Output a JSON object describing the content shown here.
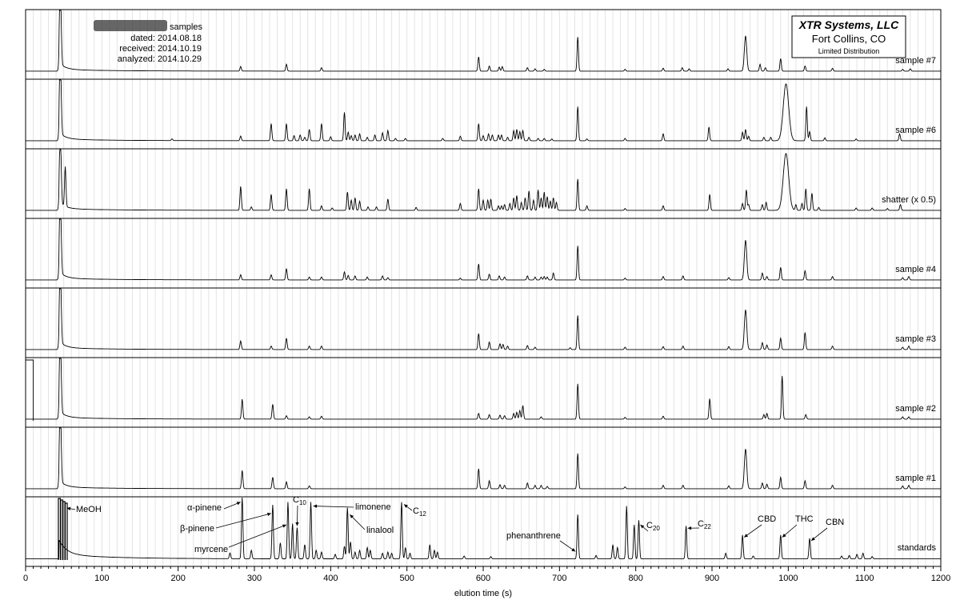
{
  "chart_data": {
    "type": "line",
    "title": "",
    "xlabel": "elution time (s)",
    "ylabel": "",
    "xlim": [
      0,
      1200
    ],
    "x_ticks": [
      0,
      100,
      200,
      300,
      400,
      500,
      600,
      700,
      800,
      900,
      1000,
      1100,
      1200
    ],
    "minor_tick_step": 10,
    "grid": "vertical lines every 10 s",
    "header": {
      "samples_word": "samples",
      "dated": "dated: 2014.08.18",
      "received": "received: 2014.10.19",
      "analyzed": "analyzed: 2014.10.29"
    },
    "company": {
      "name": "XTR Systems, LLC",
      "location": "Fort Collins, CO",
      "note": "Limited Distribution"
    },
    "series": [
      {
        "name": "sample #7",
        "baseline": 0.03,
        "solvent_height": 1.4,
        "peaks": [
          [
            282,
            0.08
          ],
          [
            342,
            0.12
          ],
          [
            388,
            0.06
          ],
          [
            594,
            0.25
          ],
          [
            608,
            0.09
          ],
          [
            621,
            0.07
          ],
          [
            625,
            0.08
          ],
          [
            658,
            0.06
          ],
          [
            668,
            0.04
          ],
          [
            680,
            0.03
          ],
          [
            724,
            0.6
          ],
          [
            786,
            0.03
          ],
          [
            836,
            0.05
          ],
          [
            861,
            0.06
          ],
          [
            870,
            0.04
          ],
          [
            921,
            0.04
          ],
          [
            944,
            0.62
          ],
          [
            963,
            0.12
          ],
          [
            970,
            0.06
          ],
          [
            990,
            0.22
          ],
          [
            1022,
            0.09
          ],
          [
            1058,
            0.05
          ],
          [
            1150,
            0.03
          ],
          [
            1160,
            0.04
          ]
        ]
      },
      {
        "name": "sample #6",
        "baseline": 0.03,
        "solvent_height": 1.4,
        "peaks": [
          [
            192,
            0.03
          ],
          [
            282,
            0.08
          ],
          [
            322,
            0.3
          ],
          [
            342,
            0.3
          ],
          [
            352,
            0.09
          ],
          [
            360,
            0.1
          ],
          [
            366,
            0.06
          ],
          [
            372,
            0.2
          ],
          [
            388,
            0.3
          ],
          [
            400,
            0.07
          ],
          [
            418,
            0.5
          ],
          [
            423,
            0.15
          ],
          [
            427,
            0.09
          ],
          [
            432,
            0.1
          ],
          [
            438,
            0.12
          ],
          [
            448,
            0.06
          ],
          [
            458,
            0.1
          ],
          [
            468,
            0.14
          ],
          [
            475,
            0.18
          ],
          [
            485,
            0.04
          ],
          [
            498,
            0.04
          ],
          [
            547,
            0.04
          ],
          [
            570,
            0.08
          ],
          [
            594,
            0.3
          ],
          [
            600,
            0.09
          ],
          [
            607,
            0.12
          ],
          [
            612,
            0.1
          ],
          [
            620,
            0.1
          ],
          [
            624,
            0.1
          ],
          [
            632,
            0.06
          ],
          [
            640,
            0.18
          ],
          [
            644,
            0.2
          ],
          [
            648,
            0.16
          ],
          [
            652,
            0.18
          ],
          [
            660,
            0.06
          ],
          [
            672,
            0.04
          ],
          [
            680,
            0.04
          ],
          [
            690,
            0.03
          ],
          [
            724,
            0.6
          ],
          [
            736,
            0.03
          ],
          [
            786,
            0.04
          ],
          [
            836,
            0.12
          ],
          [
            896,
            0.24
          ],
          [
            940,
            0.15
          ],
          [
            944,
            0.2
          ],
          [
            948,
            0.08
          ],
          [
            968,
            0.06
          ],
          [
            977,
            0.06
          ],
          [
            997,
            1.0
          ],
          [
            1024,
            0.6
          ],
          [
            1028,
            0.16
          ],
          [
            1048,
            0.05
          ],
          [
            1089,
            0.03
          ],
          [
            1146,
            0.12
          ]
        ]
      },
      {
        "name": "shatter (x 0.5)",
        "baseline": 0.03,
        "solvent_height": 1.25,
        "peaks": [
          [
            52,
            0.7
          ],
          [
            282,
            0.42
          ],
          [
            296,
            0.06
          ],
          [
            322,
            0.28
          ],
          [
            342,
            0.38
          ],
          [
            372,
            0.38
          ],
          [
            388,
            0.08
          ],
          [
            402,
            0.04
          ],
          [
            422,
            0.32
          ],
          [
            427,
            0.18
          ],
          [
            432,
            0.22
          ],
          [
            438,
            0.16
          ],
          [
            449,
            0.06
          ],
          [
            460,
            0.06
          ],
          [
            475,
            0.2
          ],
          [
            512,
            0.05
          ],
          [
            570,
            0.12
          ],
          [
            594,
            0.38
          ],
          [
            600,
            0.18
          ],
          [
            606,
            0.18
          ],
          [
            610,
            0.2
          ],
          [
            620,
            0.08
          ],
          [
            624,
            0.08
          ],
          [
            628,
            0.1
          ],
          [
            635,
            0.12
          ],
          [
            640,
            0.22
          ],
          [
            644,
            0.26
          ],
          [
            650,
            0.14
          ],
          [
            655,
            0.22
          ],
          [
            660,
            0.34
          ],
          [
            666,
            0.18
          ],
          [
            672,
            0.36
          ],
          [
            676,
            0.22
          ],
          [
            680,
            0.32
          ],
          [
            684,
            0.24
          ],
          [
            688,
            0.16
          ],
          [
            692,
            0.22
          ],
          [
            696,
            0.14
          ],
          [
            724,
            0.55
          ],
          [
            736,
            0.08
          ],
          [
            786,
            0.03
          ],
          [
            836,
            0.08
          ],
          [
            897,
            0.28
          ],
          [
            940,
            0.12
          ],
          [
            945,
            0.36
          ],
          [
            948,
            0.1
          ],
          [
            966,
            0.1
          ],
          [
            971,
            0.14
          ],
          [
            997,
            1.0
          ],
          [
            1010,
            0.1
          ],
          [
            1018,
            0.12
          ],
          [
            1023,
            0.38
          ],
          [
            1031,
            0.3
          ],
          [
            1040,
            0.05
          ],
          [
            1089,
            0.04
          ],
          [
            1110,
            0.04
          ],
          [
            1130,
            0.03
          ],
          [
            1147,
            0.1
          ]
        ]
      },
      {
        "name": "sample #4",
        "baseline": 0.03,
        "solvent_height": 1.4,
        "peaks": [
          [
            282,
            0.09
          ],
          [
            322,
            0.09
          ],
          [
            342,
            0.2
          ],
          [
            372,
            0.05
          ],
          [
            388,
            0.05
          ],
          [
            418,
            0.14
          ],
          [
            423,
            0.08
          ],
          [
            432,
            0.07
          ],
          [
            448,
            0.05
          ],
          [
            468,
            0.07
          ],
          [
            475,
            0.04
          ],
          [
            570,
            0.03
          ],
          [
            594,
            0.28
          ],
          [
            608,
            0.1
          ],
          [
            621,
            0.07
          ],
          [
            628,
            0.05
          ],
          [
            658,
            0.07
          ],
          [
            668,
            0.05
          ],
          [
            676,
            0.05
          ],
          [
            680,
            0.06
          ],
          [
            684,
            0.05
          ],
          [
            692,
            0.12
          ],
          [
            724,
            0.6
          ],
          [
            786,
            0.03
          ],
          [
            836,
            0.06
          ],
          [
            862,
            0.07
          ],
          [
            922,
            0.04
          ],
          [
            944,
            0.7
          ],
          [
            966,
            0.12
          ],
          [
            972,
            0.06
          ],
          [
            990,
            0.22
          ],
          [
            1022,
            0.16
          ],
          [
            1058,
            0.06
          ],
          [
            1150,
            0.04
          ],
          [
            1158,
            0.06
          ]
        ]
      },
      {
        "name": "sample #3",
        "baseline": 0.03,
        "solvent_height": 1.4,
        "peaks": [
          [
            282,
            0.15
          ],
          [
            322,
            0.06
          ],
          [
            342,
            0.2
          ],
          [
            372,
            0.06
          ],
          [
            388,
            0.06
          ],
          [
            594,
            0.28
          ],
          [
            608,
            0.13
          ],
          [
            622,
            0.1
          ],
          [
            626,
            0.09
          ],
          [
            632,
            0.06
          ],
          [
            658,
            0.07
          ],
          [
            668,
            0.04
          ],
          [
            714,
            0.03
          ],
          [
            724,
            0.6
          ],
          [
            786,
            0.04
          ],
          [
            836,
            0.05
          ],
          [
            862,
            0.06
          ],
          [
            922,
            0.05
          ],
          [
            944,
            0.7
          ],
          [
            966,
            0.12
          ],
          [
            972,
            0.08
          ],
          [
            990,
            0.2
          ],
          [
            1022,
            0.3
          ],
          [
            1058,
            0.06
          ],
          [
            1150,
            0.04
          ],
          [
            1158,
            0.06
          ]
        ]
      },
      {
        "name": "sample #2",
        "baseline": 0.03,
        "solvent_height": 1.4,
        "peaks": [
          [
            284,
            0.35
          ],
          [
            324,
            0.26
          ],
          [
            342,
            0.06
          ],
          [
            372,
            0.04
          ],
          [
            388,
            0.05
          ],
          [
            594,
            0.1
          ],
          [
            608,
            0.08
          ],
          [
            622,
            0.07
          ],
          [
            628,
            0.06
          ],
          [
            640,
            0.1
          ],
          [
            644,
            0.12
          ],
          [
            648,
            0.15
          ],
          [
            652,
            0.24
          ],
          [
            676,
            0.04
          ],
          [
            724,
            0.62
          ],
          [
            786,
            0.03
          ],
          [
            836,
            0.05
          ],
          [
            897,
            0.36
          ],
          [
            968,
            0.08
          ],
          [
            972,
            0.1
          ],
          [
            992,
            0.76
          ],
          [
            1023,
            0.08
          ],
          [
            1150,
            0.04
          ],
          [
            1158,
            0.04
          ]
        ]
      },
      {
        "name": "sample #1",
        "baseline": 0.03,
        "solvent_height": 1.4,
        "peaks": [
          [
            284,
            0.32
          ],
          [
            324,
            0.2
          ],
          [
            342,
            0.12
          ],
          [
            372,
            0.05
          ],
          [
            594,
            0.35
          ],
          [
            608,
            0.14
          ],
          [
            622,
            0.07
          ],
          [
            628,
            0.06
          ],
          [
            658,
            0.1
          ],
          [
            668,
            0.06
          ],
          [
            676,
            0.06
          ],
          [
            684,
            0.04
          ],
          [
            724,
            0.62
          ],
          [
            786,
            0.03
          ],
          [
            836,
            0.06
          ],
          [
            862,
            0.06
          ],
          [
            922,
            0.05
          ],
          [
            944,
            0.7
          ],
          [
            966,
            0.1
          ],
          [
            972,
            0.08
          ],
          [
            990,
            0.2
          ],
          [
            1022,
            0.14
          ],
          [
            1058,
            0.06
          ],
          [
            1150,
            0.05
          ],
          [
            1158,
            0.06
          ]
        ]
      },
      {
        "name": "standards",
        "baseline": 0.02,
        "solvent_height": 1.4,
        "peaks": [
          [
            268,
            0.1
          ],
          [
            284,
            1.1
          ],
          [
            296,
            0.15
          ],
          [
            324,
            0.95
          ],
          [
            334,
            0.28
          ],
          [
            344,
            1.0
          ],
          [
            350,
            0.62
          ],
          [
            356,
            0.55
          ],
          [
            366,
            0.25
          ],
          [
            374,
            1.0
          ],
          [
            381,
            0.15
          ],
          [
            388,
            0.12
          ],
          [
            406,
            0.08
          ],
          [
            418,
            0.22
          ],
          [
            422,
            0.9
          ],
          [
            426,
            0.3
          ],
          [
            432,
            0.12
          ],
          [
            438,
            0.15
          ],
          [
            448,
            0.2
          ],
          [
            452,
            0.15
          ],
          [
            468,
            0.1
          ],
          [
            475,
            0.12
          ],
          [
            480,
            0.1
          ],
          [
            493,
            1.0
          ],
          [
            498,
            0.2
          ],
          [
            504,
            0.1
          ],
          [
            530,
            0.25
          ],
          [
            536,
            0.15
          ],
          [
            540,
            0.12
          ],
          [
            575,
            0.05
          ],
          [
            610,
            0.04
          ],
          [
            724,
            0.78
          ],
          [
            748,
            0.06
          ],
          [
            770,
            0.25
          ],
          [
            776,
            0.2
          ],
          [
            788,
            0.93
          ],
          [
            798,
            0.6
          ],
          [
            804,
            0.68
          ],
          [
            866,
            0.58
          ],
          [
            918,
            0.1
          ],
          [
            940,
            0.42
          ],
          [
            954,
            0.05
          ],
          [
            990,
            0.42
          ],
          [
            1028,
            0.36
          ],
          [
            1070,
            0.05
          ],
          [
            1080,
            0.06
          ],
          [
            1090,
            0.08
          ],
          [
            1098,
            0.1
          ],
          [
            1110,
            0.04
          ]
        ]
      }
    ],
    "annotations": [
      {
        "text": "MeOH"
      },
      {
        "text": "α-pinene"
      },
      {
        "text": "β-pinene"
      },
      {
        "text": "myrcene"
      },
      {
        "text": "C",
        "subscript": "10"
      },
      {
        "text": "limonene"
      },
      {
        "text": "linalool"
      },
      {
        "text": "C",
        "subscript": "12"
      },
      {
        "text": "phenanthrene"
      },
      {
        "text": "C",
        "subscript": "20"
      },
      {
        "text": "C",
        "subscript": "22"
      },
      {
        "text": "CBD"
      },
      {
        "text": "THC"
      },
      {
        "text": "CBN"
      }
    ]
  }
}
